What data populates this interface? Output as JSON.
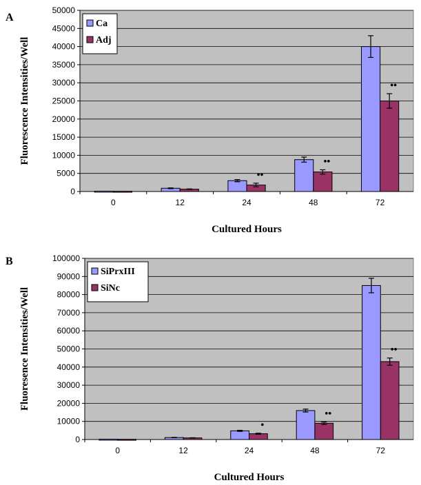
{
  "chart_data": [
    {
      "type": "bar",
      "panel_label": "A",
      "categories": [
        "0",
        "12",
        "24",
        "48",
        "72"
      ],
      "series": [
        {
          "name": "Ca",
          "values": [
            100,
            900,
            3000,
            8800,
            40000
          ],
          "errors": [
            0,
            100,
            300,
            700,
            3000
          ],
          "color": "#9999ff"
        },
        {
          "name": "Adj",
          "values": [
            80,
            650,
            1800,
            5400,
            25000
          ],
          "errors": [
            0,
            80,
            500,
            600,
            2000
          ],
          "color": "#993366"
        }
      ],
      "annotations": [
        {
          "category": "24",
          "series": "Adj",
          "text": "••"
        },
        {
          "category": "48",
          "series": "Adj",
          "text": "••"
        },
        {
          "category": "72",
          "series": "Adj",
          "text": "••"
        }
      ],
      "xlabel": "Cultured Hours",
      "ylabel": "Fluorescence Intensities/Well",
      "ylim": [
        0,
        50000
      ],
      "yticks": [
        0,
        5000,
        10000,
        15000,
        20000,
        25000,
        30000,
        35000,
        40000,
        45000,
        50000
      ],
      "grid": true,
      "legend_position": "top-left",
      "plot_background": "#c0c0c0"
    },
    {
      "type": "bar",
      "panel_label": "B",
      "categories": [
        "0",
        "12",
        "24",
        "48",
        "72"
      ],
      "series": [
        {
          "name": "SiPrxIII",
          "values": [
            200,
            1100,
            4800,
            16000,
            85000
          ],
          "errors": [
            0,
            100,
            300,
            800,
            4000
          ],
          "color": "#9999ff"
        },
        {
          "name": "SiNc",
          "values": [
            150,
            900,
            3200,
            9000,
            43000
          ],
          "errors": [
            0,
            100,
            300,
            700,
            2000
          ],
          "color": "#993366"
        }
      ],
      "annotations": [
        {
          "category": "24",
          "series": "SiNc",
          "text": "•"
        },
        {
          "category": "48",
          "series": "SiNc",
          "text": "••"
        },
        {
          "category": "72",
          "series": "SiNc",
          "text": "••"
        }
      ],
      "xlabel": "Cultured Hours",
      "ylabel": "Fluoresence Intensities/Well",
      "ylim": [
        0,
        100000
      ],
      "yticks": [
        0,
        10000,
        20000,
        30000,
        40000,
        50000,
        60000,
        70000,
        80000,
        90000,
        100000
      ],
      "grid": true,
      "legend_position": "top-left",
      "plot_background": "#c0c0c0"
    }
  ]
}
